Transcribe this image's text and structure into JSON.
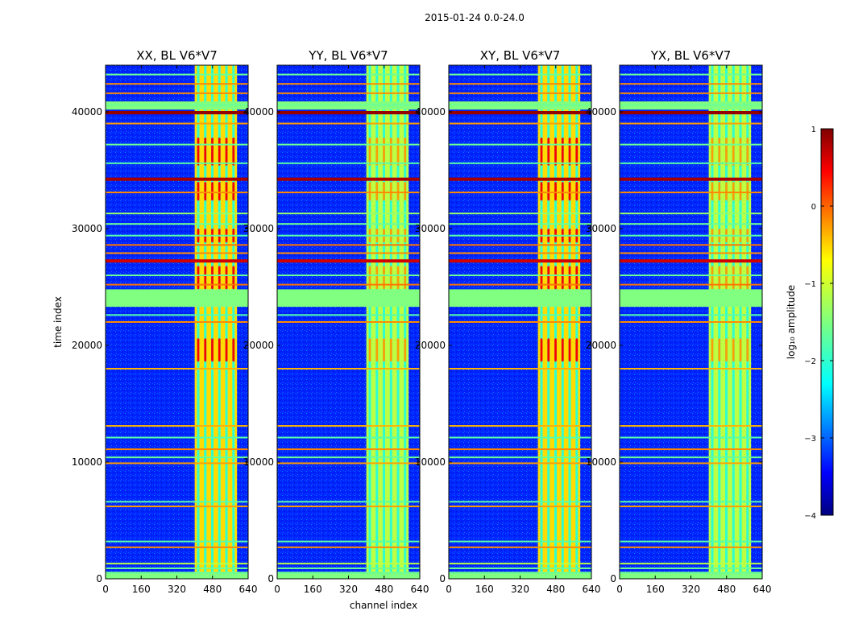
{
  "chart_data": {
    "type": "heatmap",
    "suptitle": "2015-01-24 0.0-24.0",
    "xlabel": "channel index",
    "ylabel": "time index",
    "xlim": [
      0,
      640
    ],
    "ylim": [
      0,
      44000
    ],
    "xticks": [
      0,
      160,
      320,
      480,
      640
    ],
    "xtick_labels": [
      "0",
      "160",
      "320",
      "480",
      "640"
    ],
    "yticks": [
      0,
      10000,
      20000,
      30000,
      40000
    ],
    "ytick_labels": [
      "0",
      "10000",
      "20000",
      "30000",
      "40000"
    ],
    "yticklabels_overlapped": [
      "0",
      "10000",
      "20000",
      "30000",
      "40000"
    ],
    "colormap": "jet",
    "colorbar": {
      "label": "log₁₀ amplitude",
      "vmin": -4,
      "vmax": 1,
      "ticks": [
        1,
        0,
        -1,
        -2,
        -3,
        -4
      ],
      "tick_labels": [
        "1",
        "0",
        "−1",
        "−2",
        "−3",
        "−4"
      ]
    },
    "panels": [
      {
        "title": "XX, BL V6*V7",
        "strong_band_channels": [
          400,
          590
        ],
        "intensity": "high"
      },
      {
        "title": "YY, BL V6*V7",
        "strong_band_channels": [
          400,
          590
        ],
        "intensity": "medium"
      },
      {
        "title": "XY, BL V6*V7",
        "strong_band_channels": [
          400,
          590
        ],
        "intensity": "high"
      },
      {
        "title": "YX, BL V6*V7",
        "strong_band_channels": [
          400,
          590
        ],
        "intensity": "medium"
      }
    ],
    "background_log_amplitude": -3.2,
    "band_log_amplitude": -1.0,
    "rfi_rows": [
      {
        "time": 500,
        "level": -1.6
      },
      {
        "time": 900,
        "level": -1.6
      },
      {
        "time": 1300,
        "level": -1.2
      },
      {
        "time": 2700,
        "level": -0.3
      },
      {
        "time": 3200,
        "level": -1.7
      },
      {
        "time": 6200,
        "level": -0.4
      },
      {
        "time": 6600,
        "level": -1.7
      },
      {
        "time": 9900,
        "level": -0.4
      },
      {
        "time": 10400,
        "level": -1.6
      },
      {
        "time": 11100,
        "level": -0.3
      },
      {
        "time": 12100,
        "level": -1.7
      },
      {
        "time": 13100,
        "level": -0.5
      },
      {
        "time": 18000,
        "level": -0.5
      },
      {
        "time": 22000,
        "level": -0.3
      },
      {
        "time": 22600,
        "level": -1.7
      },
      {
        "time": 23600,
        "level": -1.5
      },
      {
        "time": 25200,
        "level": -0.2
      },
      {
        "time": 26000,
        "level": -1.6
      },
      {
        "time": 27300,
        "level": 0.6
      },
      {
        "time": 27900,
        "level": -0.3
      },
      {
        "time": 28600,
        "level": -0.2
      },
      {
        "time": 29400,
        "level": -1.7
      },
      {
        "time": 30400,
        "level": -1.6
      },
      {
        "time": 31300,
        "level": -1.4
      },
      {
        "time": 33100,
        "level": -0.3
      },
      {
        "time": 34300,
        "level": 0.8
      },
      {
        "time": 35600,
        "level": -1.7
      },
      {
        "time": 37200,
        "level": -1.6
      },
      {
        "time": 39000,
        "level": -0.4
      },
      {
        "time": 40000,
        "level": 0.9
      },
      {
        "time": 40600,
        "level": -1.6
      },
      {
        "time": 41600,
        "level": -0.3
      },
      {
        "time": 42400,
        "level": -0.3
      },
      {
        "time": 43200,
        "level": -1.6
      }
    ],
    "flagged_block_times": [
      [
        23300,
        24800
      ],
      [
        0,
        600
      ],
      [
        40200,
        40900
      ]
    ],
    "flagged_block_level": -1.5
  }
}
